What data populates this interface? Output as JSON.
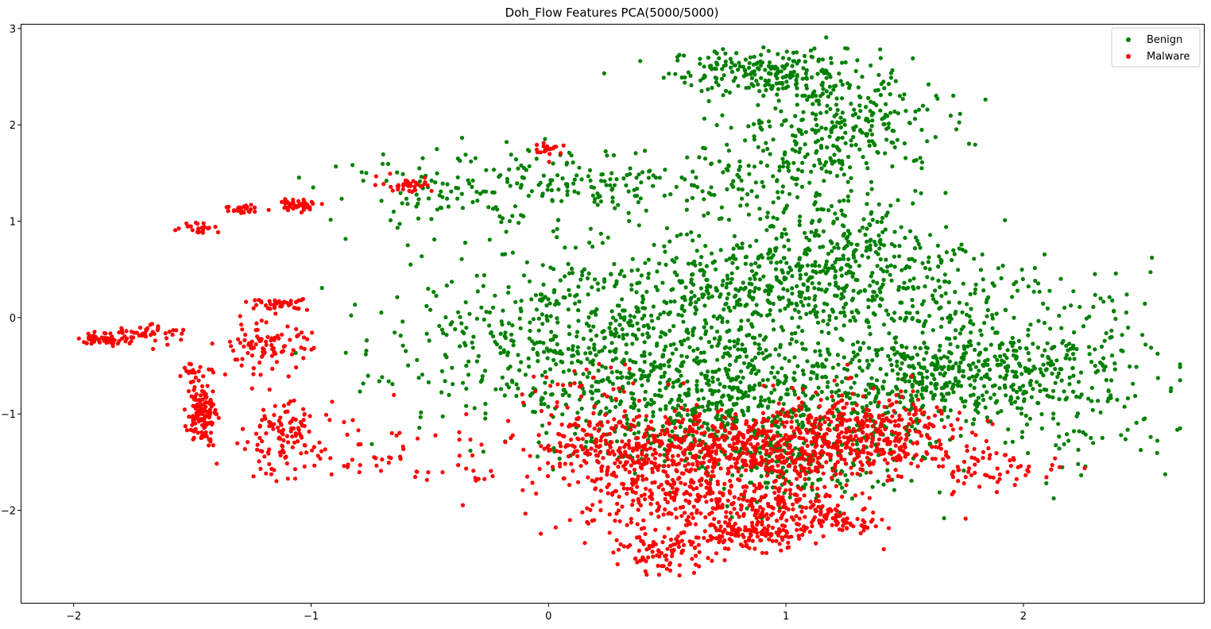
{
  "chart_data": {
    "type": "scatter",
    "title": "Doh_Flow Features PCA(5000/5000)",
    "xlabel": "",
    "ylabel": "",
    "xlim": [
      -2.22,
      2.76
    ],
    "ylim": [
      -2.96,
      3.04
    ],
    "xticks": [
      -2,
      -1,
      0,
      1,
      2
    ],
    "xtick_labels": [
      "−2",
      "−1",
      "0",
      "1",
      "2"
    ],
    "yticks": [
      -2,
      -1,
      0,
      1,
      2,
      3
    ],
    "ytick_labels": [
      "−2",
      "−1",
      "0",
      "1",
      "2",
      "3"
    ],
    "grid": false,
    "legend_position": "top-right",
    "series": [
      {
        "name": "Benign",
        "color": "#008000",
        "clusters": [
          {
            "cx": 0.95,
            "cy": 2.55,
            "sx": 0.22,
            "sy": 0.12,
            "n": 220
          },
          {
            "cx": 1.2,
            "cy": 2.05,
            "sx": 0.22,
            "sy": 0.22,
            "n": 230
          },
          {
            "cx": 1.05,
            "cy": 1.6,
            "sx": 0.2,
            "sy": 0.18,
            "n": 90
          },
          {
            "cx": 0.2,
            "cy": 1.35,
            "sx": 0.38,
            "sy": 0.18,
            "n": 190
          },
          {
            "cx": -0.45,
            "cy": 1.3,
            "sx": 0.25,
            "sy": 0.2,
            "n": 80
          },
          {
            "cx": 0.25,
            "cy": 0.0,
            "sx": 0.4,
            "sy": 0.35,
            "n": 420
          },
          {
            "cx": 0.9,
            "cy": 0.25,
            "sx": 0.3,
            "sy": 0.35,
            "n": 340
          },
          {
            "cx": 1.25,
            "cy": 0.7,
            "sx": 0.22,
            "sy": 0.35,
            "n": 260
          },
          {
            "cx": 1.55,
            "cy": 0.2,
            "sx": 0.3,
            "sy": 0.35,
            "n": 200
          },
          {
            "cx": 1.6,
            "cy": -0.6,
            "sx": 0.22,
            "sy": 0.25,
            "n": 270
          },
          {
            "cx": 2.0,
            "cy": -0.6,
            "sx": 0.28,
            "sy": 0.25,
            "n": 270
          },
          {
            "cx": 0.85,
            "cy": -1.1,
            "sx": 0.38,
            "sy": 0.28,
            "n": 560
          },
          {
            "cx": 0.55,
            "cy": -0.65,
            "sx": 0.3,
            "sy": 0.25,
            "n": 260
          },
          {
            "cx": -0.15,
            "cy": -0.55,
            "sx": 0.35,
            "sy": 0.35,
            "n": 120
          },
          {
            "cx": 1.1,
            "cy": -1.65,
            "sx": 0.2,
            "sy": 0.2,
            "n": 90
          },
          {
            "cx": 2.25,
            "cy": -1.2,
            "sx": 0.2,
            "sy": 0.25,
            "n": 40
          },
          {
            "cx": 2.3,
            "cy": 0.0,
            "sx": 0.15,
            "sy": 0.3,
            "n": 30
          }
        ]
      },
      {
        "name": "Malware",
        "color": "#ff0000",
        "clusters": [
          {
            "cx": 0.8,
            "cy": -1.35,
            "sx": 0.4,
            "sy": 0.18,
            "n": 750
          },
          {
            "cx": 1.35,
            "cy": -1.15,
            "sx": 0.22,
            "sy": 0.2,
            "n": 260
          },
          {
            "cx": 0.45,
            "cy": -1.75,
            "sx": 0.2,
            "sy": 0.25,
            "n": 240
          },
          {
            "cx": 0.9,
            "cy": -1.95,
            "sx": 0.2,
            "sy": 0.15,
            "n": 220
          },
          {
            "cx": 0.85,
            "cy": -2.25,
            "sx": 0.12,
            "sy": 0.08,
            "n": 130
          },
          {
            "cx": 0.5,
            "cy": -2.45,
            "sx": 0.1,
            "sy": 0.1,
            "n": 90
          },
          {
            "cx": 1.25,
            "cy": -2.1,
            "sx": 0.08,
            "sy": 0.06,
            "n": 60
          },
          {
            "cx": 1.9,
            "cy": -1.6,
            "sx": 0.15,
            "sy": 0.1,
            "n": 50
          },
          {
            "cx": 0.2,
            "cy": -1.3,
            "sx": 0.12,
            "sy": 0.15,
            "n": 60
          },
          {
            "cx": -1.87,
            "cy": -0.22,
            "sx": 0.05,
            "sy": 0.03,
            "n": 60
          },
          {
            "cx": -1.68,
            "cy": -0.15,
            "sx": 0.07,
            "sy": 0.06,
            "n": 40
          },
          {
            "cx": -1.46,
            "cy": -1.0,
            "sx": 0.03,
            "sy": 0.15,
            "n": 130
          },
          {
            "cx": -1.5,
            "cy": -0.6,
            "sx": 0.04,
            "sy": 0.08,
            "n": 20
          },
          {
            "cx": -1.13,
            "cy": -1.25,
            "sx": 0.08,
            "sy": 0.18,
            "n": 110
          },
          {
            "cx": -1.2,
            "cy": -0.3,
            "sx": 0.1,
            "sy": 0.12,
            "n": 90
          },
          {
            "cx": -1.13,
            "cy": 0.14,
            "sx": 0.06,
            "sy": 0.03,
            "n": 40
          },
          {
            "cx": -1.06,
            "cy": 1.17,
            "sx": 0.05,
            "sy": 0.03,
            "n": 45
          },
          {
            "cx": -1.28,
            "cy": 1.12,
            "sx": 0.04,
            "sy": 0.03,
            "n": 30
          },
          {
            "cx": -1.47,
            "cy": 0.94,
            "sx": 0.04,
            "sy": 0.03,
            "n": 25
          },
          {
            "cx": -0.6,
            "cy": 1.38,
            "sx": 0.06,
            "sy": 0.04,
            "n": 35
          },
          {
            "cx": 0.0,
            "cy": 1.75,
            "sx": 0.03,
            "sy": 0.04,
            "n": 20
          },
          {
            "cx": -0.75,
            "cy": -1.35,
            "sx": 0.3,
            "sy": 0.2,
            "n": 50
          },
          {
            "cx": -0.3,
            "cy": -1.6,
            "sx": 0.15,
            "sy": 0.15,
            "n": 20
          },
          {
            "cx": 0.2,
            "cy": -0.8,
            "sx": 0.2,
            "sy": 0.2,
            "n": 40
          }
        ]
      }
    ]
  }
}
